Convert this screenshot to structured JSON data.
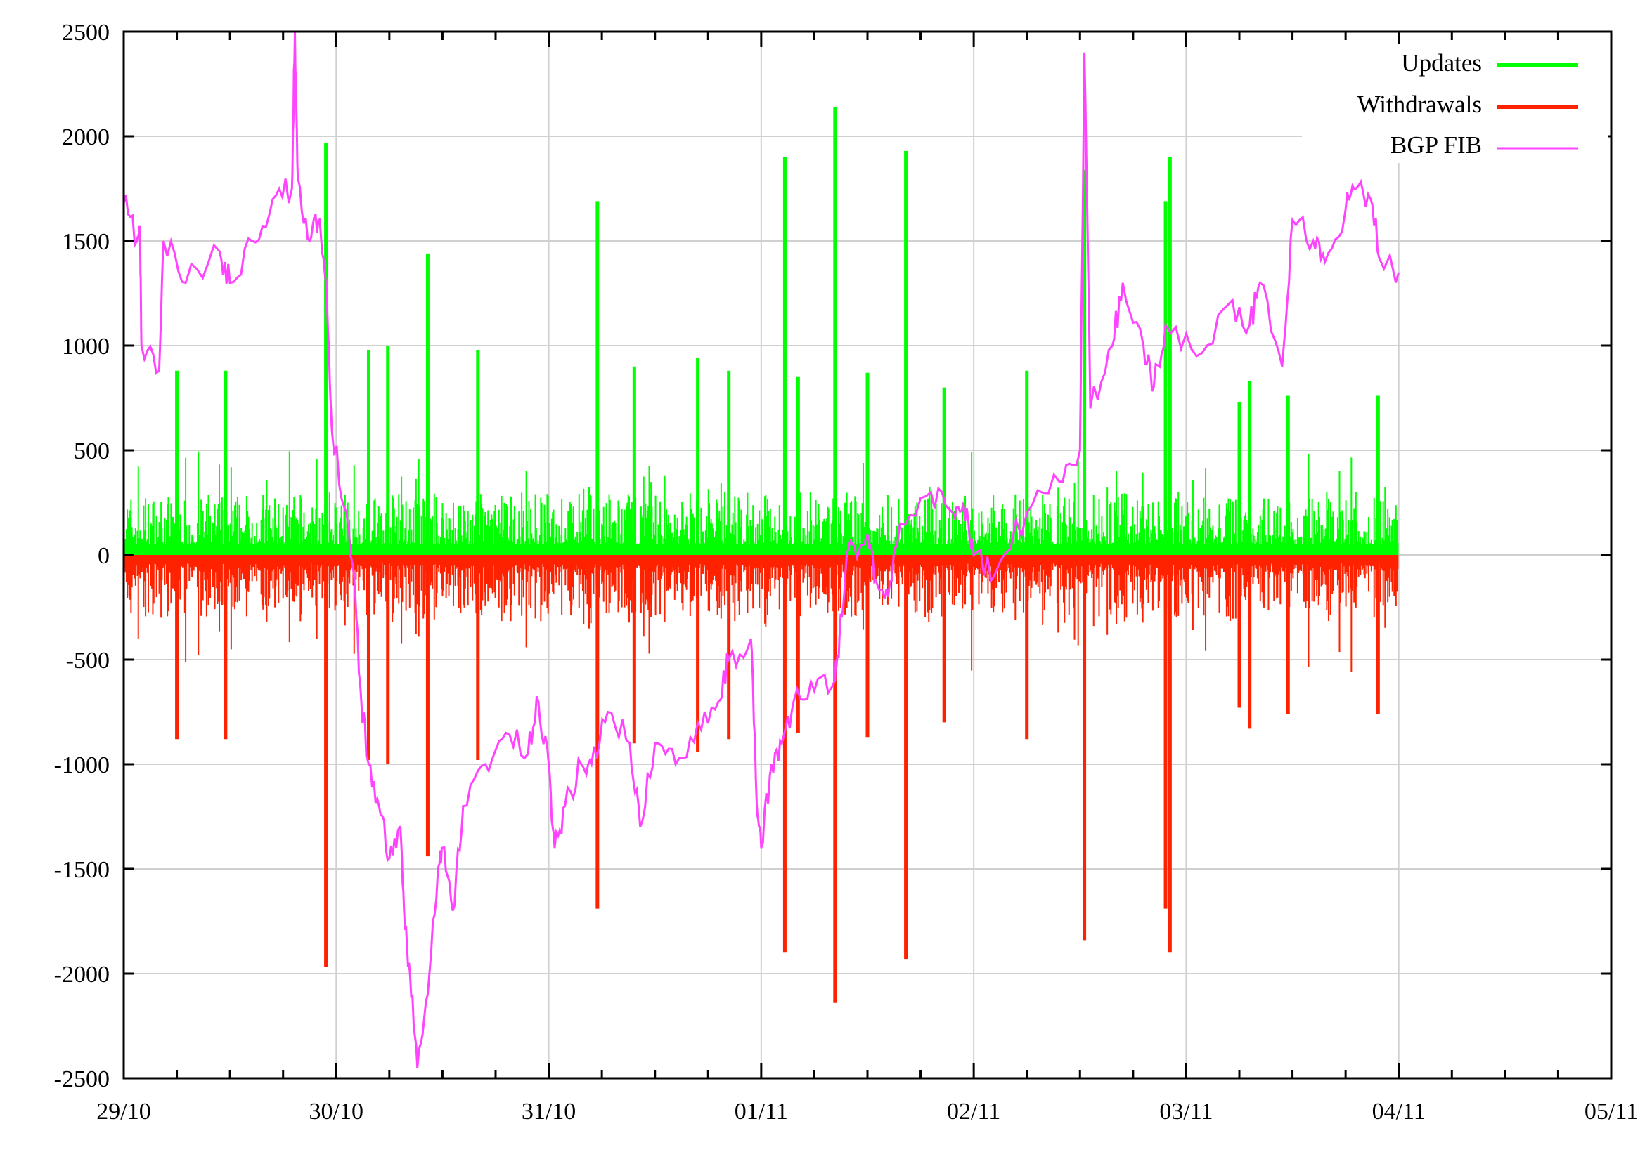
{
  "chart_data": {
    "type": "bar+line",
    "title": "",
    "xlabel": "",
    "ylabel": "",
    "ylim": [
      -2500,
      2500
    ],
    "yticks": [
      "2500",
      "2000",
      "1500",
      "1000",
      "500",
      "0",
      "-500",
      "-1000",
      "-1500",
      "-2000",
      "-2500"
    ],
    "xticks": [
      "29/10",
      "30/10",
      "31/10",
      "01/11",
      "02/11",
      "03/11",
      "04/11",
      "05/11"
    ],
    "grid": true,
    "legend_position": "top-right",
    "colors": {
      "updates": "#00ff00",
      "withdrawals": "#ff2200",
      "bgp_fib": "#ff44ff",
      "grid": "#d0d0d0"
    },
    "series": [
      {
        "name": "Updates",
        "type": "bar",
        "typical_range": [
          50,
          300
        ],
        "spikes": [
          [
            "29/10 06:00",
            880
          ],
          [
            "29/10 11:30",
            880
          ],
          [
            "29/10 22:50",
            1970
          ],
          [
            "30/10 03:40",
            980
          ],
          [
            "30/10 05:50",
            1000
          ],
          [
            "30/10 10:20",
            1440
          ],
          [
            "30/10 16:00",
            980
          ],
          [
            "31/10 05:30",
            1690
          ],
          [
            "31/10 09:40",
            900
          ],
          [
            "31/10 16:50",
            940
          ],
          [
            "31/10 20:20",
            880
          ],
          [
            "01/11 02:40",
            1900
          ],
          [
            "01/11 04:10",
            850
          ],
          [
            "01/11 08:20",
            2140
          ],
          [
            "01/11 12:00",
            870
          ],
          [
            "01/11 16:20",
            1930
          ],
          [
            "01/11 20:40",
            800
          ],
          [
            "02/11 06:00",
            880
          ],
          [
            "02/11 12:30",
            1840
          ],
          [
            "02/11 21:40",
            1690
          ],
          [
            "02/11 22:10",
            1900
          ],
          [
            "03/11 06:00",
            730
          ],
          [
            "03/11 07:10",
            830
          ],
          [
            "03/11 11:30",
            760
          ],
          [
            "03/11 21:40",
            760
          ]
        ]
      },
      {
        "name": "Withdrawals",
        "type": "bar",
        "typical_range": [
          -300,
          -50
        ],
        "spikes": [
          [
            "29/10 06:00",
            -880
          ],
          [
            "29/10 11:30",
            -880
          ],
          [
            "29/10 22:50",
            -1970
          ],
          [
            "30/10 03:40",
            -980
          ],
          [
            "30/10 05:50",
            -1000
          ],
          [
            "30/10 10:20",
            -1440
          ],
          [
            "30/10 16:00",
            -980
          ],
          [
            "31/10 05:30",
            -1690
          ],
          [
            "31/10 09:40",
            -900
          ],
          [
            "31/10 16:50",
            -940
          ],
          [
            "31/10 20:20",
            -880
          ],
          [
            "01/11 02:40",
            -1900
          ],
          [
            "01/11 04:10",
            -850
          ],
          [
            "01/11 08:20",
            -2140
          ],
          [
            "01/11 12:00",
            -870
          ],
          [
            "01/11 16:20",
            -1930
          ],
          [
            "01/11 20:40",
            -800
          ],
          [
            "02/11 06:00",
            -880
          ],
          [
            "02/11 12:30",
            -1840
          ],
          [
            "02/11 21:40",
            -1690
          ],
          [
            "02/11 22:10",
            -1900
          ],
          [
            "03/11 06:00",
            -730
          ],
          [
            "03/11 07:10",
            -830
          ],
          [
            "03/11 11:30",
            -760
          ],
          [
            "03/11 21:40",
            -760
          ]
        ]
      },
      {
        "name": "BGP FIB",
        "type": "line",
        "points": [
          [
            "29/10 00:00",
            1680
          ],
          [
            "29/10 01:30",
            1500
          ],
          [
            "29/10 01:50",
            1550
          ],
          [
            "29/10 02:00",
            1000
          ],
          [
            "29/10 04:00",
            880
          ],
          [
            "29/10 04:30",
            1500
          ],
          [
            "29/10 07:00",
            1300
          ],
          [
            "29/10 10:50",
            1450
          ],
          [
            "29/10 12:00",
            1300
          ],
          [
            "29/10 14:30",
            1500
          ],
          [
            "29/10 16:50",
            1700
          ],
          [
            "29/10 19:00",
            1750
          ],
          [
            "29/10 19:20",
            2500
          ],
          [
            "29/10 19:40",
            1800
          ],
          [
            "29/10 21:00",
            1500
          ],
          [
            "29/10 22:00",
            1600
          ],
          [
            "29/10 22:50",
            1300
          ],
          [
            "29/10 23:30",
            600
          ],
          [
            "30/10 01:10",
            200
          ],
          [
            "30/10 02:00",
            -100
          ],
          [
            "30/10 02:50",
            -700
          ],
          [
            "30/10 03:40",
            -1000
          ],
          [
            "30/10 04:50",
            -1200
          ],
          [
            "30/10 06:00",
            -1450
          ],
          [
            "30/10 07:10",
            -1300
          ],
          [
            "30/10 07:40",
            -1700
          ],
          [
            "30/10 08:20",
            -2000
          ],
          [
            "30/10 09:10",
            -2450
          ],
          [
            "30/10 10:20",
            -2100
          ],
          [
            "30/10 11:30",
            -1500
          ],
          [
            "30/10 12:00",
            -1400
          ],
          [
            "30/10 13:10",
            -1700
          ],
          [
            "30/10 14:20",
            -1200
          ],
          [
            "30/10 16:50",
            -1000
          ],
          [
            "30/10 19:10",
            -850
          ],
          [
            "30/10 21:40",
            -950
          ],
          [
            "30/10 22:50",
            -700
          ],
          [
            "31/10 00:00",
            -1000
          ],
          [
            "31/10 00:40",
            -1400
          ],
          [
            "31/10 01:50",
            -1200
          ],
          [
            "31/10 03:40",
            -1000
          ],
          [
            "31/10 04:50",
            -1000
          ],
          [
            "31/10 06:40",
            -750
          ],
          [
            "31/10 09:10",
            -900
          ],
          [
            "31/10 10:20",
            -1300
          ],
          [
            "31/10 12:00",
            -900
          ],
          [
            "31/10 14:20",
            -1000
          ],
          [
            "31/10 16:50",
            -800
          ],
          [
            "31/10 19:10",
            -700
          ],
          [
            "31/10 20:20",
            -500
          ],
          [
            "31/10 22:50",
            -400
          ],
          [
            "31/10 23:30",
            -1200
          ],
          [
            "01/11 00:00",
            -1400
          ],
          [
            "01/11 01:10",
            -1000
          ],
          [
            "01/11 02:20",
            -900
          ],
          [
            "01/11 03:40",
            -700
          ],
          [
            "01/11 06:00",
            -650
          ],
          [
            "01/11 08:20",
            -600
          ],
          [
            "01/11 08:50",
            -400
          ],
          [
            "01/11 09:40",
            0
          ],
          [
            "01/11 12:00",
            100
          ],
          [
            "01/11 13:10",
            -150
          ],
          [
            "01/11 14:20",
            -200
          ],
          [
            "01/11 15:40",
            150
          ],
          [
            "01/11 19:10",
            300
          ],
          [
            "01/11 21:40",
            200
          ],
          [
            "01/11 22:50",
            250
          ],
          [
            "02/11 00:00",
            0
          ],
          [
            "02/11 02:20",
            -100
          ],
          [
            "02/11 06:00",
            200
          ],
          [
            "02/11 09:40",
            350
          ],
          [
            "02/11 12:00",
            500
          ],
          [
            "02/11 12:30",
            2400
          ],
          [
            "02/11 13:10",
            700
          ],
          [
            "02/11 15:40",
            1000
          ],
          [
            "02/11 16:50",
            1300
          ],
          [
            "02/11 19:10",
            1000
          ],
          [
            "02/11 20:20",
            800
          ],
          [
            "02/11 21:40",
            1100
          ],
          [
            "03/11 01:10",
            950
          ],
          [
            "03/11 04:50",
            1200
          ],
          [
            "03/11 07:10",
            1100
          ],
          [
            "03/11 08:20",
            1300
          ],
          [
            "03/11 10:50",
            900
          ],
          [
            "03/11 12:00",
            1600
          ],
          [
            "03/11 14:20",
            1500
          ],
          [
            "03/11 15:40",
            1400
          ],
          [
            "03/11 18:00",
            1650
          ],
          [
            "03/11 19:10",
            1750
          ],
          [
            "03/11 20:50",
            1700
          ],
          [
            "03/11 22:00",
            1400
          ],
          [
            "04/11 00:00",
            1350
          ]
        ]
      }
    ]
  }
}
